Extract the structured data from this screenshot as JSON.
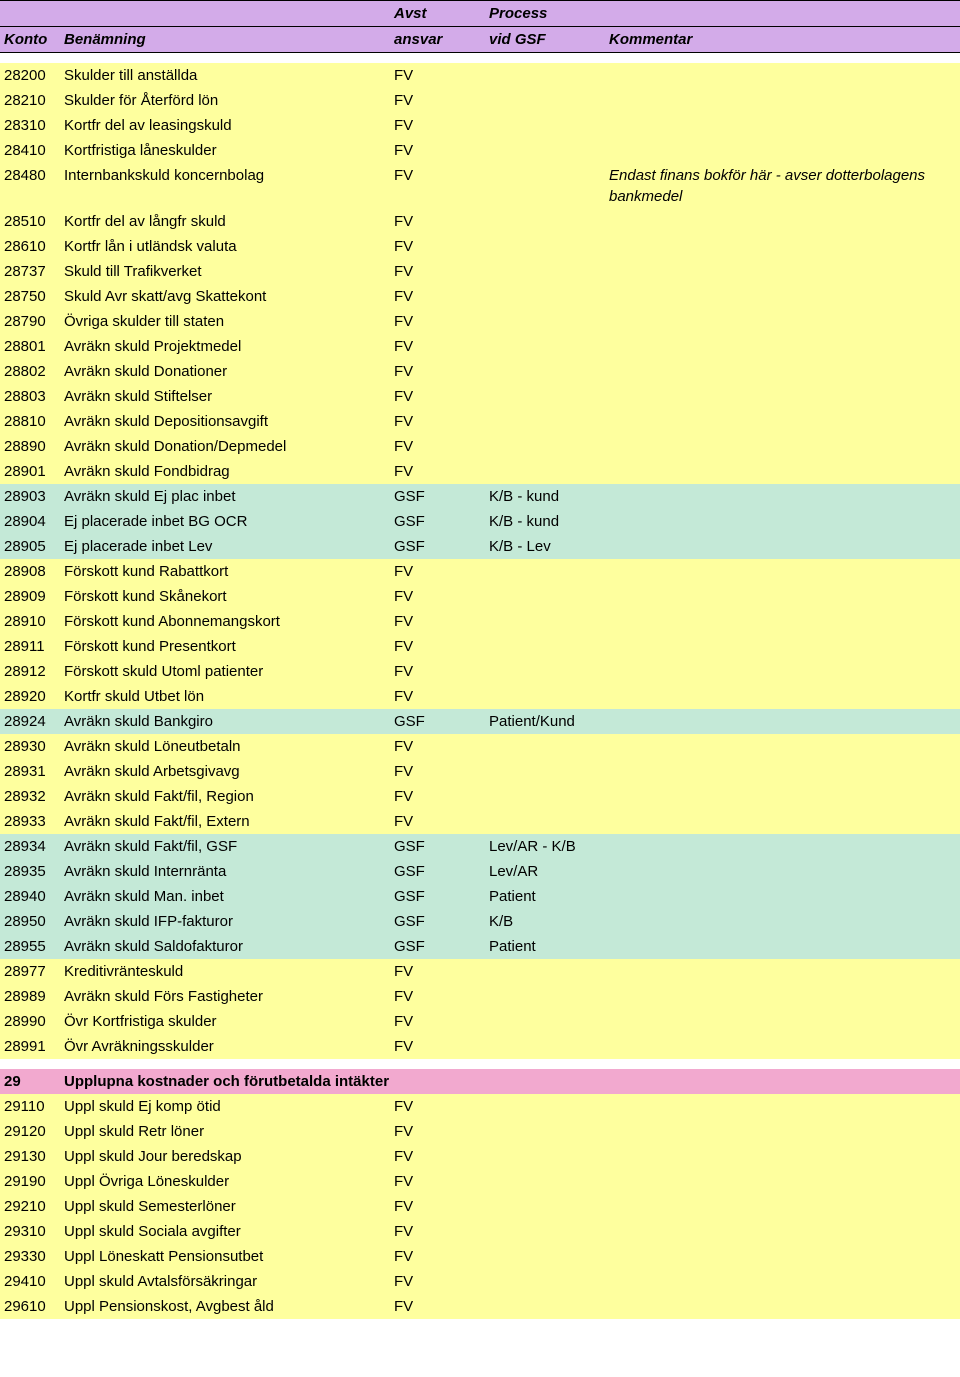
{
  "colors": {
    "header_bg": "#d3abe9",
    "yellow_bg": "#feff9e",
    "green_bg": "#c4e9d7",
    "pink_bg": "#f2a9cf",
    "white_bg": "#ffffff",
    "border": "#000000",
    "text": "#000000"
  },
  "fonts": {
    "base_size": 15,
    "header_style": "italic bold"
  },
  "columns": {
    "konto": "Konto",
    "benamning": "Benämning",
    "avst1": "Avst",
    "avst2": "ansvar",
    "proc1": "Process",
    "proc2": "vid GSF",
    "komm": "Kommentar"
  },
  "rows": [
    {
      "konto": "28200",
      "name": "Skulder till anställda",
      "avst": "FV",
      "proc": "",
      "komm": "",
      "bg": "yellow"
    },
    {
      "konto": "28210",
      "name": "Skulder för Återförd lön",
      "avst": "FV",
      "proc": "",
      "komm": "",
      "bg": "yellow"
    },
    {
      "konto": "28310",
      "name": "Kortfr del av leasingskuld",
      "avst": "FV",
      "proc": "",
      "komm": "",
      "bg": "yellow"
    },
    {
      "konto": "28410",
      "name": "Kortfristiga låneskulder",
      "avst": "FV",
      "proc": "",
      "komm": "",
      "bg": "yellow"
    },
    {
      "konto": "28480",
      "name": "Internbankskuld koncernbolag",
      "avst": "FV",
      "proc": "",
      "komm": "Endast finans bokför här - avser dotterbolagens bankmedel",
      "bg": "yellow",
      "komm_italic": true
    },
    {
      "konto": "28510",
      "name": "Kortfr del av långfr skuld",
      "avst": "FV",
      "proc": "",
      "komm": "",
      "bg": "yellow"
    },
    {
      "konto": "28610",
      "name": "Kortfr lån i utländsk valuta",
      "avst": "FV",
      "proc": "",
      "komm": "",
      "bg": "yellow"
    },
    {
      "konto": "28737",
      "name": "Skuld till Trafikverket",
      "avst": "FV",
      "proc": "",
      "komm": "",
      "bg": "yellow"
    },
    {
      "konto": "28750",
      "name": "Skuld Avr skatt/avg Skattekont",
      "avst": "FV",
      "proc": "",
      "komm": "",
      "bg": "yellow"
    },
    {
      "konto": "28790",
      "name": "Övriga skulder till staten",
      "avst": "FV",
      "proc": "",
      "komm": "",
      "bg": "yellow"
    },
    {
      "konto": "28801",
      "name": "Avräkn skuld Projektmedel",
      "avst": "FV",
      "proc": "",
      "komm": "",
      "bg": "yellow"
    },
    {
      "konto": "28802",
      "name": "Avräkn skuld Donationer",
      "avst": "FV",
      "proc": "",
      "komm": "",
      "bg": "yellow"
    },
    {
      "konto": "28803",
      "name": "Avräkn skuld Stiftelser",
      "avst": "FV",
      "proc": "",
      "komm": "",
      "bg": "yellow"
    },
    {
      "konto": "28810",
      "name": "Avräkn skuld Depositionsavgift",
      "avst": "FV",
      "proc": "",
      "komm": "",
      "bg": "yellow"
    },
    {
      "konto": "28890",
      "name": "Avräkn skuld Donation/Depmedel",
      "avst": "FV",
      "proc": "",
      "komm": "",
      "bg": "yellow"
    },
    {
      "konto": "28901",
      "name": "Avräkn skuld Fondbidrag",
      "avst": "FV",
      "proc": "",
      "komm": "",
      "bg": "yellow"
    },
    {
      "konto": "28903",
      "name": "Avräkn skuld Ej plac inbet",
      "avst": "GSF",
      "proc": "K/B - kund",
      "komm": "",
      "bg": "green"
    },
    {
      "konto": "28904",
      "name": "Ej placerade inbet BG OCR",
      "avst": "GSF",
      "proc": "K/B - kund",
      "komm": "",
      "bg": "green"
    },
    {
      "konto": "28905",
      "name": "Ej placerade inbet Lev",
      "avst": "GSF",
      "proc": "K/B - Lev",
      "komm": "",
      "bg": "green"
    },
    {
      "konto": "28908",
      "name": "Förskott kund Rabattkort",
      "avst": "FV",
      "proc": "",
      "komm": "",
      "bg": "yellow"
    },
    {
      "konto": "28909",
      "name": "Förskott kund Skånekort",
      "avst": "FV",
      "proc": "",
      "komm": "",
      "bg": "yellow"
    },
    {
      "konto": "28910",
      "name": "Förskott kund Abonnemangskort",
      "avst": "FV",
      "proc": "",
      "komm": "",
      "bg": "yellow"
    },
    {
      "konto": "28911",
      "name": "Förskott kund Presentkort",
      "avst": "FV",
      "proc": "",
      "komm": "",
      "bg": "yellow"
    },
    {
      "konto": "28912",
      "name": "Förskott skuld Utoml patienter",
      "avst": "FV",
      "proc": "",
      "komm": "",
      "bg": "yellow"
    },
    {
      "konto": "28920",
      "name": "Kortfr skuld Utbet lön",
      "avst": "FV",
      "proc": "",
      "komm": "",
      "bg": "yellow"
    },
    {
      "konto": "28924",
      "name": "Avräkn skuld Bankgiro",
      "avst": "GSF",
      "proc": "Patient/Kund",
      "komm": "",
      "bg": "green"
    },
    {
      "konto": "28930",
      "name": "Avräkn skuld Löneutbetaln",
      "avst": "FV",
      "proc": "",
      "komm": "",
      "bg": "yellow"
    },
    {
      "konto": "28931",
      "name": "Avräkn skuld Arbetsgivavg",
      "avst": "FV",
      "proc": "",
      "komm": "",
      "bg": "yellow"
    },
    {
      "konto": "28932",
      "name": "Avräkn skuld Fakt/fil, Region",
      "avst": "FV",
      "proc": "",
      "komm": "",
      "bg": "yellow"
    },
    {
      "konto": "28933",
      "name": "Avräkn skuld Fakt/fil, Extern",
      "avst": "FV",
      "proc": "",
      "komm": "",
      "bg": "yellow"
    },
    {
      "konto": "28934",
      "name": "Avräkn skuld Fakt/fil, GSF",
      "avst": "GSF",
      "proc": "Lev/AR - K/B",
      "komm": "",
      "bg": "green"
    },
    {
      "konto": "28935",
      "name": "Avräkn skuld Internränta",
      "avst": "GSF",
      "proc": "Lev/AR",
      "komm": "",
      "bg": "green"
    },
    {
      "konto": "28940",
      "name": "Avräkn skuld Man. inbet",
      "avst": "GSF",
      "proc": "Patient",
      "komm": "",
      "bg": "green"
    },
    {
      "konto": "28950",
      "name": "Avräkn skuld IFP-fakturor",
      "avst": "GSF",
      "proc": "K/B",
      "komm": "",
      "bg": "green"
    },
    {
      "konto": "28955",
      "name": "Avräkn skuld Saldofakturor",
      "avst": "GSF",
      "proc": "Patient",
      "komm": "",
      "bg": "green"
    },
    {
      "konto": "28977",
      "name": "Kreditivränteskuld",
      "avst": "FV",
      "proc": "",
      "komm": "",
      "bg": "yellow"
    },
    {
      "konto": "28989",
      "name": "Avräkn skuld Förs Fastigheter",
      "avst": "FV",
      "proc": "",
      "komm": "",
      "bg": "yellow"
    },
    {
      "konto": "28990",
      "name": "Övr Kortfristiga skulder",
      "avst": "FV",
      "proc": "",
      "komm": "",
      "bg": "yellow"
    },
    {
      "konto": "28991",
      "name": "Övr Avräkningsskulder",
      "avst": "FV",
      "proc": "",
      "komm": "",
      "bg": "yellow"
    }
  ],
  "section": {
    "konto": "29",
    "name": "Upplupna kostnader och förutbetalda intäkter",
    "bg": "pink"
  },
  "rows2": [
    {
      "konto": "29110",
      "name": "Uppl skuld Ej komp ötid",
      "avst": "FV",
      "proc": "",
      "komm": "",
      "bg": "yellow"
    },
    {
      "konto": "29120",
      "name": "Uppl skuld Retr löner",
      "avst": "FV",
      "proc": "",
      "komm": "",
      "bg": "yellow"
    },
    {
      "konto": "29130",
      "name": "Uppl skuld Jour beredskap",
      "avst": "FV",
      "proc": "",
      "komm": "",
      "bg": "yellow"
    },
    {
      "konto": "29190",
      "name": "Uppl Övriga Löneskulder",
      "avst": "FV",
      "proc": "",
      "komm": "",
      "bg": "yellow"
    },
    {
      "konto": "29210",
      "name": "Uppl skuld Semesterlöner",
      "avst": "FV",
      "proc": "",
      "komm": "",
      "bg": "yellow"
    },
    {
      "konto": "29310",
      "name": "Uppl skuld Sociala avgifter",
      "avst": "FV",
      "proc": "",
      "komm": "",
      "bg": "yellow"
    },
    {
      "konto": "29330",
      "name": "Uppl Löneskatt Pensionsutbet",
      "avst": "FV",
      "proc": "",
      "komm": "",
      "bg": "yellow"
    },
    {
      "konto": "29410",
      "name": "Uppl skuld Avtalsförsäkringar",
      "avst": "FV",
      "proc": "",
      "komm": "",
      "bg": "yellow"
    },
    {
      "konto": "29610",
      "name": "Uppl Pensionskost, Avgbest åld",
      "avst": "FV",
      "proc": "",
      "komm": "",
      "bg": "yellow"
    }
  ]
}
